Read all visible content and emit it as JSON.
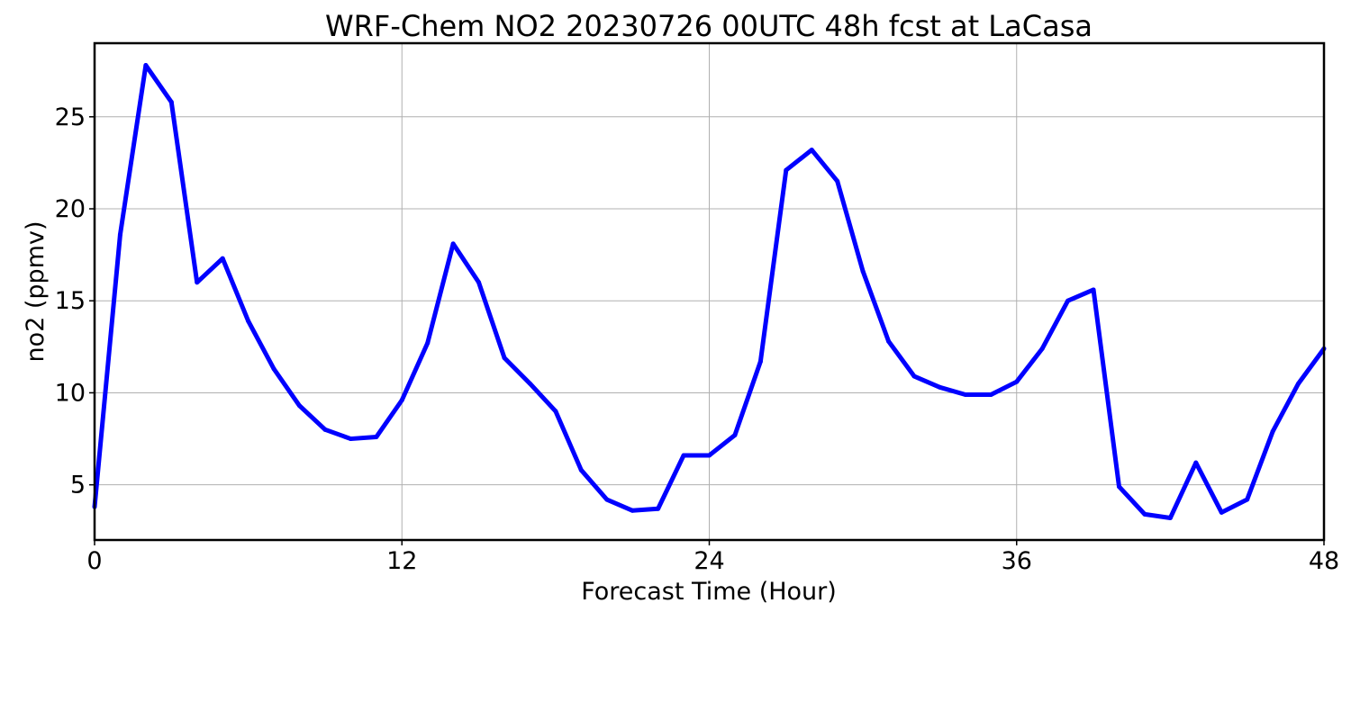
{
  "chart_data": {
    "type": "line",
    "title": "WRF-Chem NO2  20230726 00UTC 48h fcst at LaCasa",
    "xlabel": "Forecast Time (Hour)",
    "ylabel": "no2  (ppmv)",
    "xlim": [
      0,
      48
    ],
    "ylim": [
      2,
      29
    ],
    "xticks": [
      0,
      12,
      24,
      36,
      48
    ],
    "yticks": [
      5,
      10,
      15,
      20,
      25
    ],
    "grid": true,
    "series": [
      {
        "color": "#0000ff",
        "x": [
          0,
          1,
          2,
          3,
          4,
          5,
          6,
          7,
          8,
          9,
          10,
          11,
          12,
          13,
          14,
          15,
          16,
          17,
          18,
          19,
          20,
          21,
          22,
          23,
          24,
          25,
          26,
          27,
          28,
          29,
          30,
          31,
          32,
          33,
          34,
          35,
          36,
          37,
          38,
          39,
          40,
          41,
          42,
          43,
          44,
          45,
          46,
          47,
          48
        ],
        "values": [
          3.8,
          18.6,
          27.8,
          25.8,
          16.0,
          17.3,
          13.9,
          11.3,
          9.3,
          8.0,
          7.5,
          7.6,
          9.6,
          12.7,
          18.1,
          16.0,
          11.9,
          10.5,
          9.0,
          5.8,
          4.2,
          3.6,
          3.7,
          6.6,
          6.6,
          7.7,
          11.7,
          22.1,
          23.2,
          21.5,
          16.6,
          12.8,
          10.9,
          10.3,
          9.9,
          9.9,
          10.6,
          12.4,
          15.0,
          15.6,
          4.9,
          3.4,
          3.2,
          6.2,
          3.5,
          4.2,
          7.9,
          10.5,
          12.4
        ]
      }
    ]
  }
}
